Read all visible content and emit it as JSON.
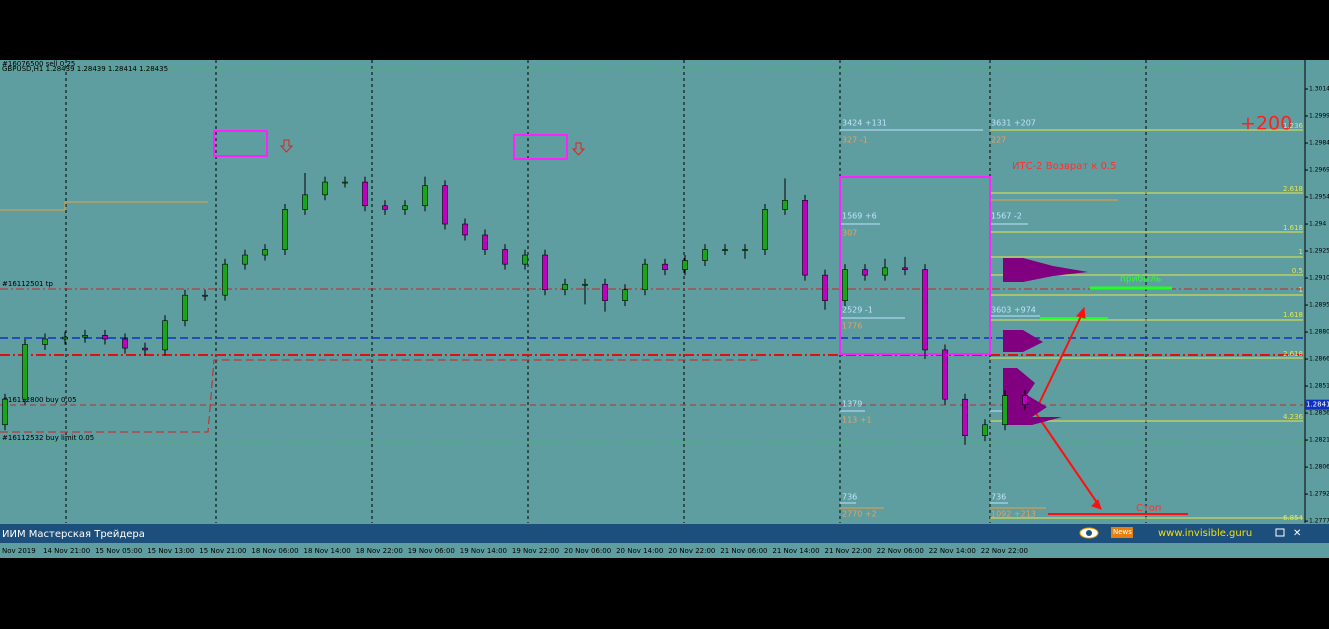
{
  "chart_data": {
    "type": "candlestick",
    "header": "#16076500 sell 0.25",
    "symbol_line": "GBPUSD,H1 1.28439 1.28439 1.28414 1.28435",
    "ylim": [
      1.27767,
      1.30288
    ],
    "yticks": [
      1.3014,
      1.29992,
      1.29844,
      1.29696,
      1.29548,
      1.294,
      1.29252,
      1.29104,
      1.28956,
      1.28808,
      1.2866,
      1.28512,
      1.28364,
      1.28216,
      1.28068,
      1.2792,
      1.27772
    ],
    "last_price": 1.2841,
    "x_labels": [
      "Nov 2019",
      "14 Nov 21:00",
      "15 Nov 05:00",
      "15 Nov 13:00",
      "15 Nov 21:00",
      "18 Nov 06:00",
      "18 Nov 14:00",
      "18 Nov 22:00",
      "19 Nov 06:00",
      "19 Nov 14:00",
      "19 Nov 22:00",
      "20 Nov 06:00",
      "20 Nov 14:00",
      "20 Nov 22:00",
      "21 Nov 06:00",
      "21 Nov 14:00",
      "21 Nov 22:00",
      "22 Nov 06:00",
      "22 Nov 14:00",
      "22 Nov 22:00"
    ],
    "up_color": "#1aa51a",
    "down_color": "#c000c0",
    "candles": [
      [
        1.283,
        1.2847,
        1.2827,
        1.2844
      ],
      [
        1.2844,
        1.2877,
        1.2841,
        1.2874
      ],
      [
        1.2874,
        1.288,
        1.2871,
        1.2877
      ],
      [
        1.2877,
        1.2881,
        1.2874,
        1.2878
      ],
      [
        1.2878,
        1.2882,
        1.2875,
        1.2879
      ],
      [
        1.2879,
        1.2882,
        1.2874,
        1.2877
      ],
      [
        1.2877,
        1.288,
        1.2869,
        1.2872
      ],
      [
        1.2872,
        1.2875,
        1.2868,
        1.2871
      ],
      [
        1.2871,
        1.289,
        1.2868,
        1.2887
      ],
      [
        1.2887,
        1.2904,
        1.2884,
        1.2901
      ],
      [
        1.2901,
        1.2904,
        1.2898,
        1.2901
      ],
      [
        1.2901,
        1.2921,
        1.2898,
        1.2918
      ],
      [
        1.2918,
        1.2926,
        1.2915,
        1.2923
      ],
      [
        1.2923,
        1.2929,
        1.292,
        1.2926
      ],
      [
        1.2926,
        1.2951,
        1.2923,
        1.2948
      ],
      [
        1.2948,
        1.2968,
        1.2945,
        1.2956
      ],
      [
        1.2956,
        1.2966,
        1.2953,
        1.2963
      ],
      [
        1.2963,
        1.2966,
        1.296,
        1.2963
      ],
      [
        1.2963,
        1.2966,
        1.2947,
        1.295
      ],
      [
        1.295,
        1.2953,
        1.2945,
        1.2948
      ],
      [
        1.2948,
        1.2953,
        1.2945,
        1.295
      ],
      [
        1.295,
        1.2966,
        1.2947,
        1.2961
      ],
      [
        1.2961,
        1.2964,
        1.2937,
        1.294
      ],
      [
        1.294,
        1.2943,
        1.2931,
        1.2934
      ],
      [
        1.2934,
        1.2937,
        1.2923,
        1.2926
      ],
      [
        1.2926,
        1.2929,
        1.2915,
        1.2918
      ],
      [
        1.2918,
        1.2926,
        1.2915,
        1.2923
      ],
      [
        1.2923,
        1.2926,
        1.2901,
        1.2904
      ],
      [
        1.2904,
        1.291,
        1.2901,
        1.2907
      ],
      [
        1.2907,
        1.291,
        1.2896,
        1.2907
      ],
      [
        1.2907,
        1.291,
        1.2892,
        1.2898
      ],
      [
        1.2898,
        1.2907,
        1.2895,
        1.2904
      ],
      [
        1.2904,
        1.2921,
        1.2901,
        1.2918
      ],
      [
        1.2918,
        1.2921,
        1.2912,
        1.2915
      ],
      [
        1.2915,
        1.2923,
        1.2912,
        1.292
      ],
      [
        1.292,
        1.2929,
        1.2917,
        1.2926
      ],
      [
        1.2926,
        1.2929,
        1.2923,
        1.2926
      ],
      [
        1.2926,
        1.2929,
        1.2921,
        1.2926
      ],
      [
        1.2926,
        1.2951,
        1.2923,
        1.2948
      ],
      [
        1.2948,
        1.2965,
        1.2945,
        1.2953
      ],
      [
        1.2953,
        1.2956,
        1.2909,
        1.2912
      ],
      [
        1.2912,
        1.2915,
        1.2893,
        1.2898
      ],
      [
        1.2898,
        1.2918,
        1.2895,
        1.2915
      ],
      [
        1.2915,
        1.2918,
        1.2909,
        1.2912
      ],
      [
        1.2912,
        1.2921,
        1.2909,
        1.2916
      ],
      [
        1.2916,
        1.2922,
        1.2912,
        1.2915
      ],
      [
        1.2915,
        1.2918,
        1.2866,
        1.2871
      ],
      [
        1.2871,
        1.2874,
        1.2841,
        1.2844
      ],
      [
        1.2844,
        1.2847,
        1.2819,
        1.2824
      ],
      [
        1.2824,
        1.2833,
        1.2821,
        1.283
      ],
      [
        1.283,
        1.2849,
        1.2827,
        1.2846
      ],
      [
        1.2846,
        1.2849,
        1.2838,
        1.2841
      ]
    ],
    "annotations": {
      "profit_target": "+200",
      "strategy": "ИТС-2 Возврат к 0.5",
      "profit": "прибыль",
      "stop": "Стоп",
      "tp_order": "#16112501 tp",
      "buy_order": "#16112800 buy 0.05",
      "buy_limit": "#16112532 buy limit 0.05",
      "fib_levels": [
        "1.236",
        "2.618",
        "1.618",
        "1",
        "0.5",
        "1",
        "1.618",
        "2.618",
        "4.236",
        "6.854"
      ],
      "profile_labels": [
        "3424 +131",
        "327 -1",
        "3631 +207",
        "227",
        "1569 +6",
        "307",
        "1567 -2",
        "2529 -1",
        "1776",
        "3603 +974",
        "1379",
        "113 +1",
        "736",
        "2770 +2",
        "736",
        "1092 +213"
      ]
    }
  },
  "status_bar": {
    "title": "ИИМ Мастерская Трейдера",
    "news": "News",
    "site": "www.invisible.guru",
    "close": "✕"
  }
}
